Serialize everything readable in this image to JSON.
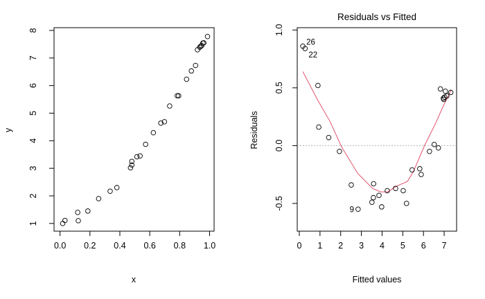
{
  "chart_data": [
    {
      "type": "scatter",
      "title": "",
      "xlabel": "x",
      "ylabel": "y",
      "xlim": [
        -0.04,
        1.03
      ],
      "ylim": [
        0.72,
        8.1
      ],
      "xticks": [
        "0.0",
        "0.2",
        "0.4",
        "0.6",
        "0.8",
        "1.0"
      ],
      "yticks": [
        "1",
        "2",
        "3",
        "4",
        "5",
        "6",
        "7",
        "8"
      ],
      "grid": false,
      "marker": "open-circle",
      "points": [
        [
          0.018,
          1.0
        ],
        [
          0.033,
          1.11
        ],
        [
          0.118,
          1.4
        ],
        [
          0.122,
          1.1
        ],
        [
          0.186,
          1.45
        ],
        [
          0.258,
          1.9
        ],
        [
          0.335,
          2.17
        ],
        [
          0.38,
          2.3
        ],
        [
          0.471,
          3.02
        ],
        [
          0.48,
          3.12
        ],
        [
          0.48,
          3.25
        ],
        [
          0.514,
          3.42
        ],
        [
          0.535,
          3.45
        ],
        [
          0.572,
          3.87
        ],
        [
          0.624,
          4.29
        ],
        [
          0.674,
          4.64
        ],
        [
          0.698,
          4.69
        ],
        [
          0.733,
          5.26
        ],
        [
          0.784,
          5.63
        ],
        [
          0.793,
          5.63
        ],
        [
          0.846,
          6.23
        ],
        [
          0.878,
          6.53
        ],
        [
          0.906,
          6.73
        ],
        [
          0.919,
          7.3
        ],
        [
          0.934,
          7.39
        ],
        [
          0.941,
          7.43
        ],
        [
          0.947,
          7.45
        ],
        [
          0.955,
          7.54
        ],
        [
          0.961,
          7.55
        ],
        [
          0.986,
          7.78
        ]
      ]
    },
    {
      "type": "scatter",
      "title": "Residuals vs Fitted",
      "xlabel": "Fitted values",
      "ylabel": "Residuals",
      "xlim": [
        -0.1,
        7.6
      ],
      "ylim": [
        -0.74,
        1.02
      ],
      "xticks": [
        "0",
        "1",
        "2",
        "3",
        "4",
        "5",
        "6",
        "7"
      ],
      "yticks": [
        "-0.5",
        "0.0",
        "0.5",
        "1.0"
      ],
      "grid": false,
      "reference_line": {
        "y": 0,
        "style": "dotted",
        "color": "#b3b3b3"
      },
      "smooth_color": "#df536b",
      "marker": "open-circle",
      "points": [
        [
          0.17,
          0.86
        ],
        [
          0.28,
          0.84
        ],
        [
          0.9,
          0.52
        ],
        [
          0.94,
          0.16
        ],
        [
          1.42,
          0.07
        ],
        [
          1.94,
          -0.05
        ],
        [
          2.51,
          -0.34
        ],
        [
          2.84,
          -0.55
        ],
        [
          3.51,
          -0.49
        ],
        [
          3.58,
          -0.45
        ],
        [
          3.59,
          -0.33
        ],
        [
          3.85,
          -0.43
        ],
        [
          3.98,
          -0.53
        ],
        [
          4.25,
          -0.39
        ],
        [
          4.65,
          -0.37
        ],
        [
          5.02,
          -0.39
        ],
        [
          5.18,
          -0.5
        ],
        [
          5.45,
          -0.21
        ],
        [
          5.82,
          -0.2
        ],
        [
          5.89,
          -0.25
        ],
        [
          6.29,
          -0.05
        ],
        [
          6.52,
          0.01
        ],
        [
          6.72,
          -0.02
        ],
        [
          6.82,
          0.49
        ],
        [
          7.06,
          0.47
        ],
        [
          6.96,
          0.41
        ],
        [
          6.98,
          0.4
        ],
        [
          7.02,
          0.42
        ],
        [
          7.13,
          0.43
        ],
        [
          7.32,
          0.46
        ]
      ],
      "point_labels": [
        {
          "label": "26",
          "x": 0.17,
          "y": 0.86
        },
        {
          "label": "22",
          "x": 0.28,
          "y": 0.84
        },
        {
          "label": "9",
          "x": 2.84,
          "y": -0.55
        }
      ],
      "smooth": [
        [
          0.17,
          0.64
        ],
        [
          0.9,
          0.39
        ],
        [
          1.48,
          0.21
        ],
        [
          2.04,
          -0.01
        ],
        [
          2.82,
          -0.24
        ],
        [
          3.54,
          -0.37
        ],
        [
          3.93,
          -0.4
        ],
        [
          4.27,
          -0.4
        ],
        [
          4.71,
          -0.35
        ],
        [
          5.22,
          -0.31
        ],
        [
          5.5,
          -0.23
        ],
        [
          6.05,
          0.0
        ],
        [
          6.55,
          0.18
        ],
        [
          6.95,
          0.34
        ],
        [
          7.34,
          0.48
        ]
      ]
    }
  ]
}
